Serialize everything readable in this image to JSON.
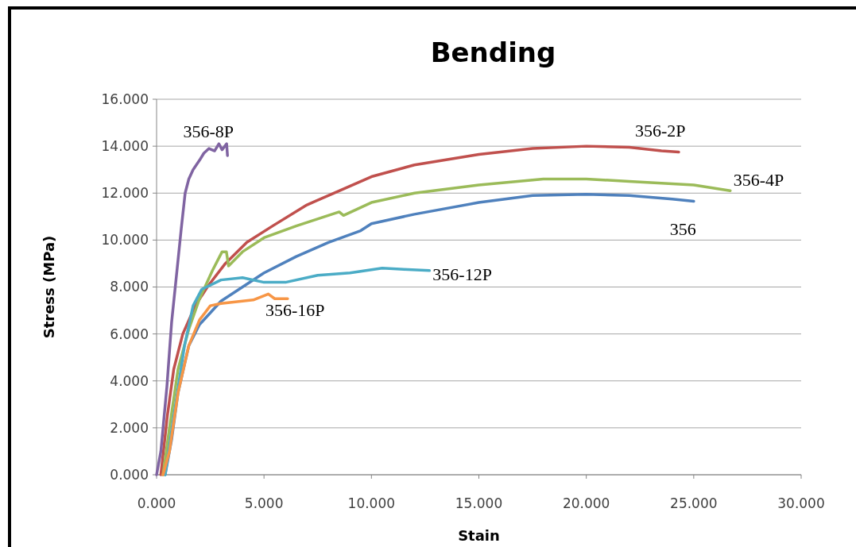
{
  "chart_data": {
    "type": "line",
    "title": "Bending",
    "xlabel": "Stain",
    "ylabel": "Stress (MPa)",
    "xlim": [
      0,
      30
    ],
    "ylim": [
      0,
      16
    ],
    "xticks": [
      {
        "value": 0,
        "label": "0.000"
      },
      {
        "value": 5,
        "label": "5.000"
      },
      {
        "value": 10,
        "label": "10.000"
      },
      {
        "value": 15,
        "label": "15.000"
      },
      {
        "value": 20,
        "label": "20.000"
      },
      {
        "value": 25,
        "label": "25.000"
      },
      {
        "value": 30,
        "label": "30.000"
      }
    ],
    "yticks": [
      {
        "value": 0,
        "label": "0.000"
      },
      {
        "value": 2,
        "label": "2.000"
      },
      {
        "value": 4,
        "label": "4.000"
      },
      {
        "value": 6,
        "label": "6.000"
      },
      {
        "value": 8,
        "label": "8.000"
      },
      {
        "value": 10,
        "label": "10.000"
      },
      {
        "value": 12,
        "label": "12.000"
      },
      {
        "value": 14,
        "label": "14.000"
      },
      {
        "value": 16,
        "label": "16.000"
      }
    ],
    "grid": "y",
    "marker": "none",
    "line_style": "solid",
    "series": [
      {
        "name": "356",
        "color": "#4f81bd",
        "x": [
          0.4,
          0.7,
          1.0,
          1.5,
          2,
          3,
          4,
          5,
          6.5,
          8,
          9.5,
          10,
          12,
          15,
          17.5,
          20,
          22,
          24,
          25
        ],
        "values": [
          0,
          1.5,
          3.5,
          5.5,
          6.4,
          7.4,
          8.0,
          8.6,
          9.3,
          9.9,
          10.4,
          10.7,
          11.1,
          11.6,
          11.9,
          11.95,
          11.9,
          11.75,
          11.65
        ]
      },
      {
        "name": "356-2P",
        "color": "#c0504d",
        "x": [
          0.2,
          0.5,
          0.8,
          1.22,
          1.8,
          2.4,
          3.2,
          4.2,
          5.4,
          7,
          8.5,
          10,
          12,
          15,
          17.5,
          20,
          22,
          23.5,
          24.3
        ],
        "values": [
          0,
          2.5,
          4.5,
          6.0,
          7.2,
          8.05,
          9.0,
          9.9,
          10.6,
          11.5,
          12.1,
          12.7,
          13.2,
          13.65,
          13.9,
          14.0,
          13.95,
          13.8,
          13.75
        ]
      },
      {
        "name": "356-4P",
        "color": "#9bbb59",
        "x": [
          0.3,
          0.6,
          1.0,
          1.5,
          2,
          2.6,
          3.05,
          3.25,
          3.35,
          4,
          5,
          6.5,
          8.5,
          8.7,
          10,
          12,
          15,
          18,
          20,
          22,
          25,
          26.7
        ],
        "values": [
          0,
          2,
          4.5,
          6.2,
          7.5,
          8.7,
          9.5,
          9.5,
          8.9,
          9.5,
          10.1,
          10.6,
          11.2,
          11.05,
          11.6,
          12.0,
          12.35,
          12.6,
          12.6,
          12.5,
          12.35,
          12.1
        ]
      },
      {
        "name": "356-8P",
        "color": "#8064a2",
        "x": [
          0,
          0.2,
          0.48,
          0.7,
          0.96,
          1.15,
          1.33,
          1.5,
          1.7,
          2.0,
          2.2,
          2.44,
          2.7,
          2.9,
          3.05,
          3.26,
          3.3
        ],
        "values": [
          0,
          1,
          3.75,
          6.5,
          8.8,
          10.5,
          12.0,
          12.6,
          13.0,
          13.4,
          13.7,
          13.9,
          13.8,
          14.1,
          13.85,
          14.1,
          13.6
        ]
      },
      {
        "name": "356-12P",
        "color": "#4bacc6",
        "x": [
          0.4,
          0.8,
          1.3,
          1.7,
          2.1,
          3,
          4,
          5,
          6,
          7.5,
          9,
          10.5,
          11.5,
          12.7
        ],
        "values": [
          0,
          2.5,
          5.5,
          7.2,
          7.9,
          8.3,
          8.4,
          8.2,
          8.2,
          8.5,
          8.6,
          8.8,
          8.75,
          8.7
        ]
      },
      {
        "name": "356-16P",
        "color": "#f79646",
        "x": [
          0.3,
          0.6,
          1.0,
          1.5,
          2,
          2.5,
          3,
          4,
          4.5,
          5.2,
          5.5,
          6.1
        ],
        "values": [
          0,
          1,
          3.5,
          5.5,
          6.6,
          7.2,
          7.3,
          7.4,
          7.45,
          7.7,
          7.5,
          7.5
        ]
      }
    ]
  }
}
